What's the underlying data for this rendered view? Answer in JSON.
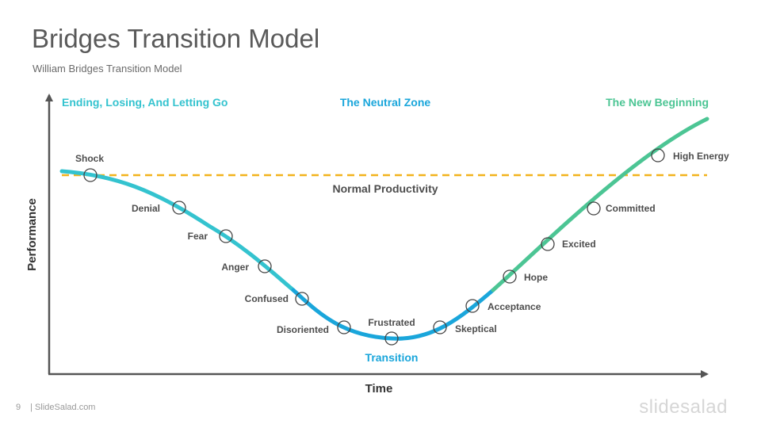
{
  "slide": {
    "title": "Bridges Transition Model",
    "subtitle": "William  Bridges  Transition  Model",
    "page_number": "9",
    "footer_source": "| SlideSalad.com",
    "brand": "slidesalad"
  },
  "diagram": {
    "zones": [
      {
        "label": "Ending, Losing, And Letting Go",
        "color": "#34c3cf"
      },
      {
        "label": "The Neutral Zone",
        "color": "#1aa6db"
      },
      {
        "label": "The New Beginning",
        "color": "#4cc594"
      }
    ],
    "baseline_label": "Normal Productivity",
    "baseline_color": "#f2b31c",
    "bottom_label": "Transition",
    "x_axis_title": "Time",
    "y_axis_title": "Performance",
    "stages": [
      "Shock",
      "Denial",
      "Fear",
      "Anger",
      "Confused",
      "Disoriented",
      "Frustrated",
      "Skeptical",
      "Acceptance",
      "Hope",
      "Excited",
      "Committed",
      "High Energy"
    ],
    "colors": {
      "phase1": "#34c3cf",
      "phase2": "#1aa6db",
      "phase3": "#4cc594",
      "axis": "#555555",
      "marker": "#444444"
    }
  }
}
